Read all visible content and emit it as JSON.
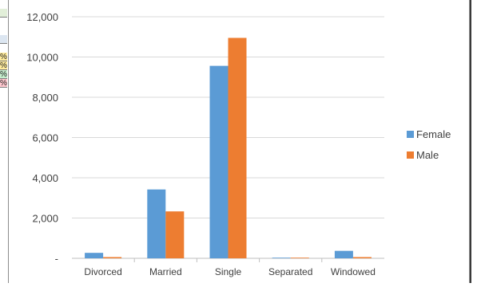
{
  "sheet_fragments": {
    "cells": [
      "",
      "",
      "%",
      "%",
      "%",
      "%"
    ],
    "colors": [
      "#e2efd9",
      "#dce6f1",
      "#ffeb9c",
      "#ffeb9c",
      "#c6efce",
      "#ffc7ce"
    ]
  },
  "chart_data": {
    "type": "bar",
    "title": "",
    "xlabel": "",
    "ylabel": "",
    "categories": [
      "Divorced",
      "Married",
      "Single",
      "Separated",
      "Windowed"
    ],
    "series": [
      {
        "name": "Female",
        "color": "#5b9bd5",
        "values": [
          270,
          3420,
          9560,
          20,
          370
        ]
      },
      {
        "name": "Male",
        "color": "#ed7d31",
        "values": [
          60,
          2330,
          10950,
          10,
          60
        ]
      }
    ],
    "ylim": [
      0,
      12000
    ],
    "yticks": [
      0,
      2000,
      4000,
      6000,
      8000,
      10000,
      12000
    ],
    "ytick_labels": [
      "-",
      "2,000",
      "4,000",
      "6,000",
      "8,000",
      "10,000",
      "12,000"
    ],
    "grid": true,
    "legend_position": "right"
  }
}
